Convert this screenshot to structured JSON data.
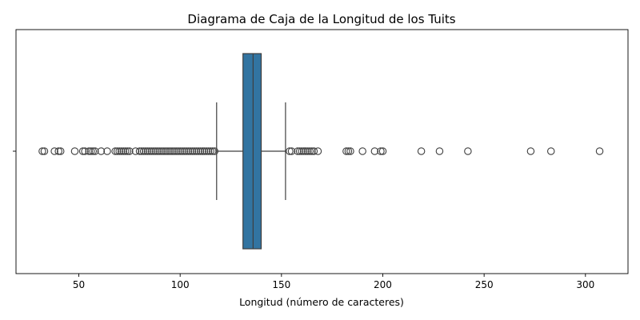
{
  "chart_data": {
    "type": "box",
    "title": "Diagrama de Caja de la Longitud de los Tuits",
    "xlabel": "Longitud (número de caracteres)",
    "ylabel": "",
    "xlim": [
      19,
      321
    ],
    "xticks": [
      50,
      100,
      150,
      200,
      250,
      300
    ],
    "xtick_labels": [
      "50",
      "100",
      "150",
      "200",
      "250",
      "300"
    ],
    "grid": false,
    "orientation": "horizontal",
    "box_color": "#3274a1",
    "box": {
      "whisker_low": 118,
      "q1": 131,
      "median": 136,
      "q3": 140,
      "whisker_high": 152
    },
    "outliers": [
      32,
      33,
      38,
      40,
      41,
      48,
      52,
      53,
      55,
      56,
      57,
      58,
      61,
      64,
      68,
      69,
      70,
      71,
      72,
      73,
      74,
      75,
      78,
      80,
      81,
      82,
      83,
      84,
      85,
      86,
      87,
      88,
      89,
      90,
      91,
      92,
      93,
      94,
      95,
      96,
      97,
      98,
      99,
      100,
      101,
      102,
      103,
      104,
      105,
      106,
      107,
      108,
      109,
      110,
      111,
      112,
      113,
      114,
      115,
      116,
      117,
      154,
      155,
      158,
      159,
      160,
      161,
      162,
      163,
      164,
      165,
      166,
      168,
      182,
      183,
      184,
      190,
      196,
      199,
      200,
      219,
      228,
      242,
      273,
      283,
      307
    ]
  }
}
